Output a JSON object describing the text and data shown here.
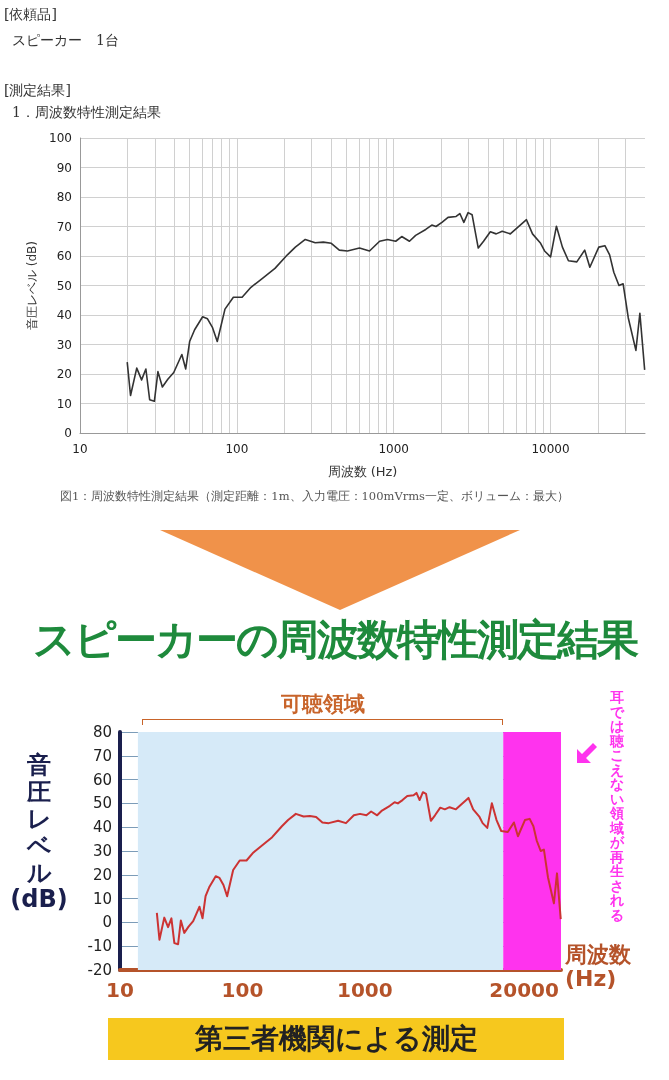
{
  "chart_data": [
    {
      "type": "line",
      "title": "1．周波数特性測定結果",
      "xlabel": "周波数 (Hz)",
      "ylabel": "音圧レベル (dB)",
      "log": "x",
      "grid": true,
      "marker": "none",
      "line_style": "solid",
      "annotations": [
        "[依頼品]",
        "スピーカー　1台",
        "[測定結果]",
        "図1：周波数特性測定結果（測定距離：1m、入力電圧：100mVrms一定、ボリューム：最大）"
      ],
      "xlim": [
        10,
        40000
      ],
      "xticks": [
        10,
        100,
        1000,
        10000
      ],
      "ylim": [
        0,
        100
      ],
      "yticks": [
        0,
        10,
        20,
        30,
        40,
        50,
        60,
        70,
        80,
        90,
        100
      ],
      "x": [
        20,
        21,
        23,
        24.7,
        26.3,
        27.8,
        29.8,
        31.4,
        33.5,
        36.3,
        39.6,
        44.6,
        47.2,
        50,
        53.8,
        60.5,
        65,
        70,
        75,
        84,
        95,
        108,
        123,
        147,
        175,
        210,
        236,
        273,
        316,
        356,
        400,
        450,
        507,
        605,
        701,
        813,
        913,
        1030,
        1125,
        1260,
        1380,
        1600,
        1750,
        1860,
        2030,
        2220,
        2500,
        2640,
        2800,
        2980,
        3160,
        3460,
        3740,
        4130,
        4500,
        4920,
        5540,
        7020,
        7670,
        8640,
        9160,
        10000,
        10900,
        11900,
        13000,
        14700,
        16500,
        17800,
        20300,
        22200,
        23800,
        25300,
        27300,
        29000,
        31300,
        35000,
        37100,
        39800
      ],
      "series": [
        {
          "color": "#333333",
          "values": [
            24,
            12.7,
            22,
            18,
            21.7,
            11.3,
            10.8,
            20.8,
            15.6,
            18.2,
            20.5,
            26.6,
            21.7,
            31,
            35,
            39.4,
            38.7,
            35.7,
            31,
            42,
            46,
            46,
            49.4,
            52.6,
            55.8,
            60.4,
            63,
            65.6,
            64.5,
            64.7,
            64.3,
            62,
            61.7,
            62.7,
            61.7,
            65,
            65.6,
            65,
            66.6,
            65,
            67,
            69,
            70.5,
            70,
            71.4,
            73.1,
            73.4,
            74.4,
            71.4,
            74.7,
            74,
            62.7,
            65,
            68.2,
            67.5,
            68.4,
            67.5,
            72.3,
            67.5,
            64.3,
            61.7,
            59.7,
            70.1,
            63,
            58.4,
            58,
            62,
            56.2,
            63,
            63.5,
            60.4,
            54.5,
            50,
            50.6,
            39,
            28,
            40.6,
            21.4
          ]
        }
      ]
    },
    {
      "type": "line",
      "title": "スピーカーの周波数特性測定結果",
      "xlabel": "周波数(Hz)",
      "ylabel": "音圧レベル(dB)",
      "log": "x",
      "grid": true,
      "marker": "none",
      "line_style": "solid",
      "annotations": [
        "第三者機関による測定"
      ],
      "xlim": [
        10,
        40000
      ],
      "xticks": [
        10,
        100,
        1000,
        20000
      ],
      "ylim": [
        -20,
        80
      ],
      "yticks": [
        -20,
        -10,
        0,
        10,
        20,
        30,
        40,
        50,
        60,
        70,
        80
      ],
      "bands": [
        {
          "axis": "x",
          "from": 14,
          "to": 13500,
          "label": "可聴領域",
          "color": "#d6eaf8"
        },
        {
          "axis": "x",
          "from": 13500,
          "to": 40000,
          "label": "耳では聴こえない領域が再生される",
          "color": "#ff33ee"
        }
      ],
      "x": [
        20,
        21,
        23,
        24.7,
        26.3,
        27.8,
        29.8,
        31.4,
        33.5,
        36.3,
        39.6,
        44.6,
        47.2,
        50,
        53.8,
        60.5,
        65,
        70,
        75,
        84,
        95,
        108,
        123,
        147,
        175,
        210,
        236,
        273,
        316,
        356,
        400,
        450,
        507,
        605,
        701,
        813,
        913,
        1030,
        1125,
        1260,
        1380,
        1600,
        1750,
        1860,
        2030,
        2220,
        2500,
        2640,
        2800,
        2980,
        3160,
        3460,
        3740,
        4130,
        4500,
        4920,
        5540,
        7020,
        7670,
        8640,
        9160,
        10000,
        10900,
        11900,
        13000,
        14700,
        16500,
        17800,
        20300,
        22200,
        23800,
        25300,
        27300,
        29000,
        31300,
        35000,
        37100,
        39800
      ],
      "series": [
        {
          "color": "#cc3333",
          "values": [
            4,
            -7.3,
            2,
            -2,
            1.7,
            -8.7,
            -9.2,
            0.8,
            -4.4,
            -1.8,
            0.5,
            6.6,
            1.7,
            11,
            15,
            19.4,
            18.7,
            15.7,
            11,
            22,
            26,
            26,
            29.4,
            32.6,
            35.8,
            40.4,
            43,
            45.6,
            44.5,
            44.7,
            44.3,
            42,
            41.7,
            42.7,
            41.7,
            45,
            45.6,
            45,
            46.6,
            45,
            47,
            49,
            50.5,
            50,
            51.4,
            53.1,
            53.4,
            54.4,
            51.4,
            54.7,
            54,
            42.7,
            45,
            48.2,
            47.5,
            48.4,
            47.5,
            52.3,
            47.5,
            44.3,
            41.7,
            39.7,
            50.1,
            43,
            38.4,
            38,
            42,
            36.2,
            43,
            43.5,
            40.4,
            34.5,
            30,
            30.6,
            19,
            8,
            20.6,
            1.4
          ]
        }
      ]
    }
  ]
}
